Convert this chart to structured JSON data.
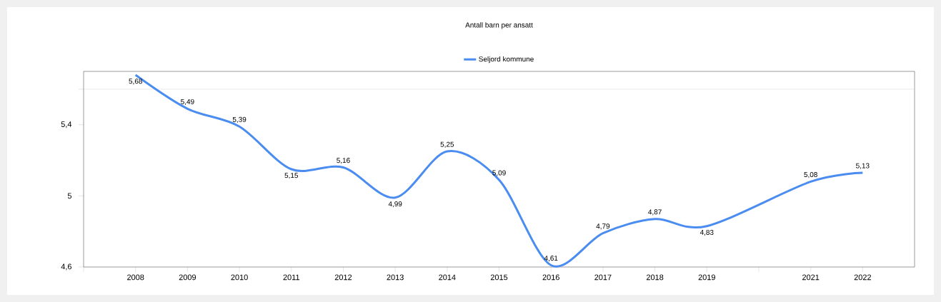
{
  "chart_data": {
    "type": "line",
    "title": "Antall barn per ansatt",
    "legend": "top",
    "x": [
      2008,
      2009,
      2010,
      2011,
      2012,
      2013,
      2014,
      2015,
      2016,
      2017,
      2018,
      2019,
      2021,
      2022
    ],
    "series": [
      {
        "name": "Seljord kommune",
        "color": "#4a8cf0",
        "values": [
          5.68,
          5.49,
          5.39,
          5.15,
          5.16,
          4.99,
          5.25,
          5.09,
          4.61,
          4.79,
          4.87,
          4.83,
          5.08,
          5.13
        ],
        "value_labels": [
          "5,68",
          "5,49",
          "5,39",
          "5,15",
          "5,16",
          "4,99",
          "5,25",
          "5,09",
          "4,61",
          "4,79",
          "4,87",
          "4,83",
          "5,08",
          "5,13"
        ]
      }
    ],
    "xlim": [
      2007,
      2023
    ],
    "xticks": [
      {
        "value": 2007,
        "label": null
      },
      2008,
      2009,
      2010,
      2011,
      2012,
      2013,
      2014,
      2015,
      2016,
      2017,
      2018,
      2019,
      {
        "value": 2020,
        "label": null
      },
      2021,
      2022
    ],
    "ylim": [
      4.6,
      5.7
    ],
    "yticks": [
      {
        "value": 4.6,
        "label": "4,6"
      },
      5,
      {
        "value": 5.4,
        "label": "5,4"
      },
      {
        "value": 5.6,
        "label": null
      }
    ],
    "ref_lines": [
      {
        "axis": "y",
        "value": 5.6,
        "color": "#c8c8c8"
      }
    ],
    "grid": false,
    "marker": "none",
    "line_style": "solid"
  }
}
